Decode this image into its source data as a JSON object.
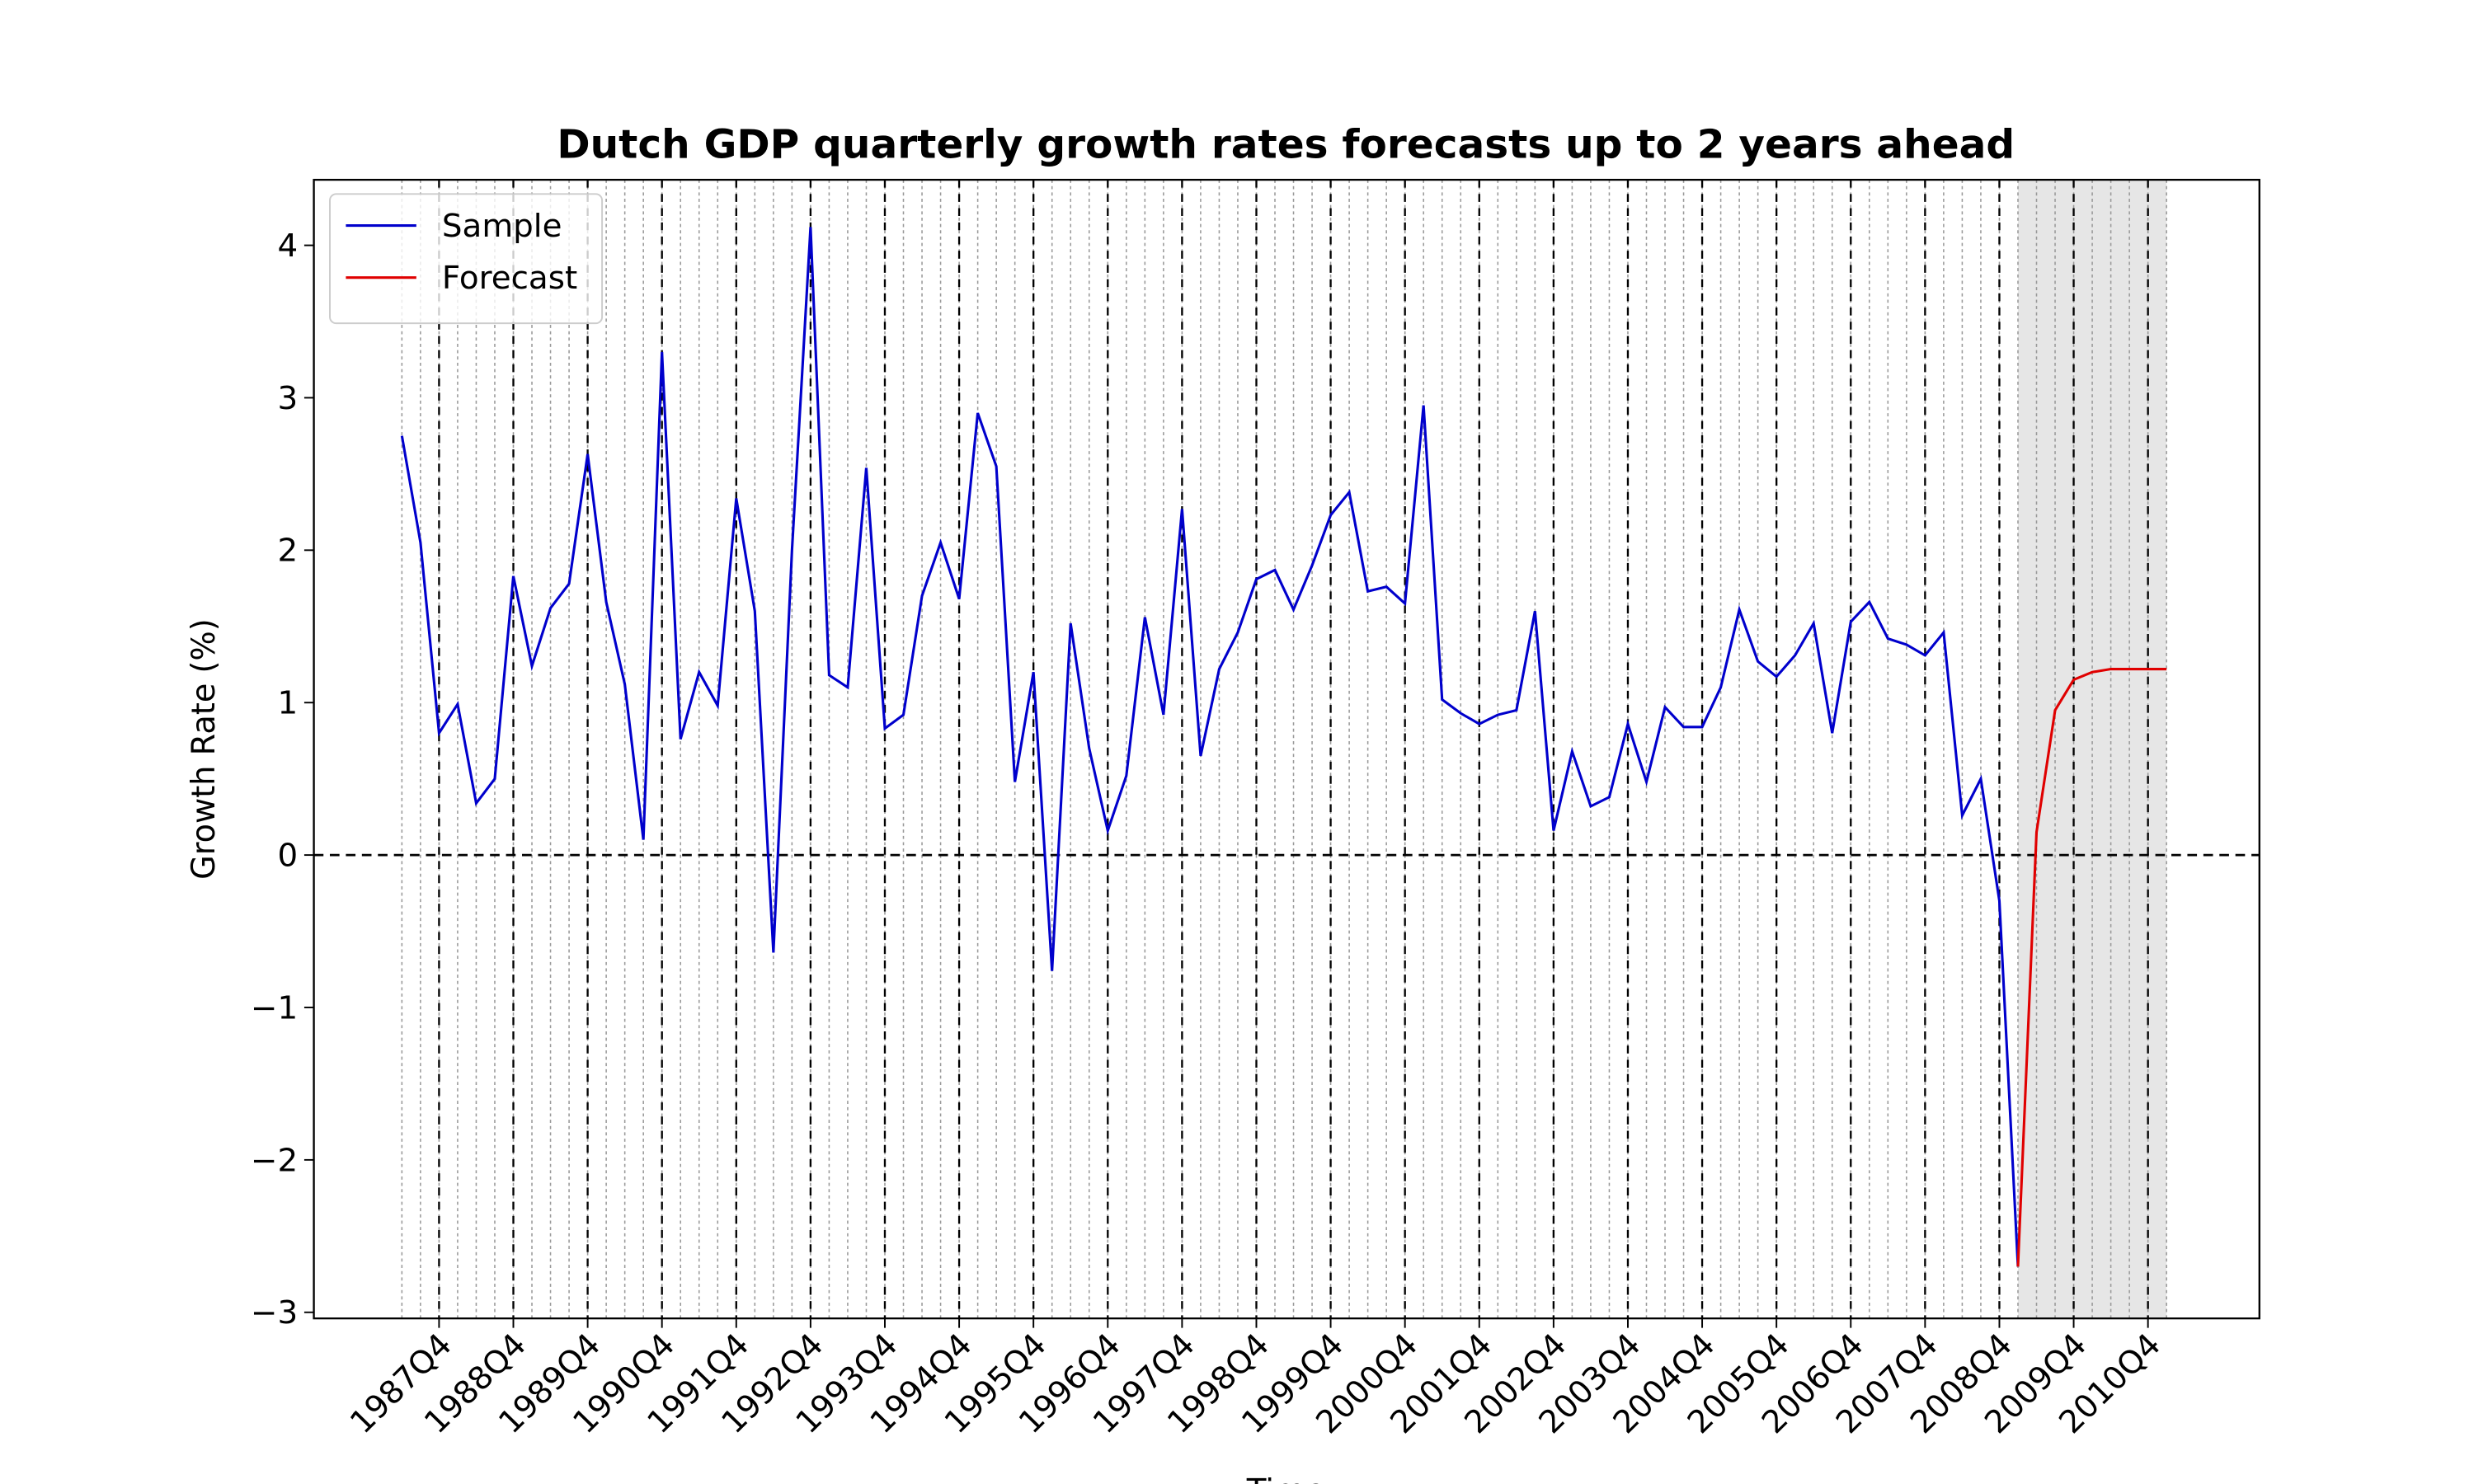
{
  "chart_data": {
    "type": "line",
    "title": "Dutch GDP quarterly growth rates forecasts up to 2 years ahead",
    "ylabel": "Growth Rate (%)",
    "xlabel": "Time",
    "x": [
      "1987Q2",
      "1987Q3",
      "1987Q4",
      "1988Q1",
      "1988Q2",
      "1988Q3",
      "1988Q4",
      "1989Q1",
      "1989Q2",
      "1989Q3",
      "1989Q4",
      "1990Q1",
      "1990Q2",
      "1990Q3",
      "1990Q4",
      "1991Q1",
      "1991Q2",
      "1991Q3",
      "1991Q4",
      "1992Q1",
      "1992Q2",
      "1992Q3",
      "1992Q4",
      "1993Q1",
      "1993Q2",
      "1993Q3",
      "1993Q4",
      "1994Q1",
      "1994Q2",
      "1994Q3",
      "1994Q4",
      "1995Q1",
      "1995Q2",
      "1995Q3",
      "1995Q4",
      "1996Q1",
      "1996Q2",
      "1996Q3",
      "1996Q4",
      "1997Q1",
      "1997Q2",
      "1997Q3",
      "1997Q4",
      "1998Q1",
      "1998Q2",
      "1998Q3",
      "1998Q4",
      "1999Q1",
      "1999Q2",
      "1999Q3",
      "1999Q4",
      "2000Q1",
      "2000Q2",
      "2000Q3",
      "2000Q4",
      "2001Q1",
      "2001Q2",
      "2001Q3",
      "2001Q4",
      "2002Q1",
      "2002Q2",
      "2002Q3",
      "2002Q4",
      "2003Q1",
      "2003Q2",
      "2003Q3",
      "2003Q4",
      "2004Q1",
      "2004Q2",
      "2004Q3",
      "2004Q4",
      "2005Q1",
      "2005Q2",
      "2005Q3",
      "2005Q4",
      "2006Q1",
      "2006Q2",
      "2006Q3",
      "2006Q4",
      "2007Q1",
      "2007Q2",
      "2007Q3",
      "2007Q4",
      "2008Q1",
      "2008Q2",
      "2008Q3",
      "2008Q4",
      "2009Q1",
      "2009Q2",
      "2009Q3",
      "2009Q4",
      "2010Q1",
      "2010Q2",
      "2010Q3",
      "2010Q4",
      "2011Q1"
    ],
    "series": [
      {
        "name": "Sample",
        "color": "#0000cc",
        "values": [
          2.75,
          2.05,
          0.8,
          0.99,
          0.34,
          0.5,
          1.83,
          1.24,
          1.62,
          1.78,
          2.63,
          1.66,
          1.12,
          0.1,
          3.3,
          0.76,
          1.2,
          0.98,
          2.34,
          1.6,
          -0.64,
          2.0,
          4.12,
          1.18,
          1.1,
          2.54,
          0.83,
          0.92,
          1.7,
          2.05,
          1.68,
          2.9,
          2.55,
          0.48,
          1.2,
          -0.76,
          1.52,
          0.7,
          0.16,
          0.52,
          1.56,
          0.92,
          2.27,
          0.65,
          1.22,
          1.46,
          1.81,
          1.87,
          1.61,
          1.9,
          2.23,
          2.38,
          1.73,
          1.76,
          1.65,
          2.95,
          1.02,
          0.93,
          0.86,
          0.92,
          0.95,
          1.6,
          0.16,
          0.68,
          0.32,
          0.38,
          0.86,
          0.48,
          0.97,
          0.84,
          0.84,
          1.1,
          1.61,
          1.27,
          1.17,
          1.31,
          1.52,
          0.8,
          1.53,
          1.66,
          1.42,
          1.38,
          1.31,
          1.46,
          0.26,
          0.5,
          -0.3,
          -2.7,
          null,
          null,
          null,
          null,
          null,
          null,
          null,
          null
        ]
      },
      {
        "name": "Forecast",
        "color": "#e00000",
        "values": [
          null,
          null,
          null,
          null,
          null,
          null,
          null,
          null,
          null,
          null,
          null,
          null,
          null,
          null,
          null,
          null,
          null,
          null,
          null,
          null,
          null,
          null,
          null,
          null,
          null,
          null,
          null,
          null,
          null,
          null,
          null,
          null,
          null,
          null,
          null,
          null,
          null,
          null,
          null,
          null,
          null,
          null,
          null,
          null,
          null,
          null,
          null,
          null,
          null,
          null,
          null,
          null,
          null,
          null,
          null,
          null,
          null,
          null,
          null,
          null,
          null,
          null,
          null,
          null,
          null,
          null,
          null,
          null,
          null,
          null,
          null,
          null,
          null,
          null,
          null,
          null,
          null,
          null,
          null,
          null,
          null,
          null,
          null,
          null,
          null,
          null,
          null,
          -2.7,
          0.15,
          0.95,
          1.15,
          1.2,
          1.22,
          1.22,
          1.22,
          1.22
        ]
      }
    ],
    "xticks": [
      "1987Q4",
      "1988Q4",
      "1989Q4",
      "1990Q4",
      "1991Q4",
      "1992Q4",
      "1993Q4",
      "1994Q4",
      "1995Q4",
      "1996Q4",
      "1997Q4",
      "1998Q4",
      "1999Q4",
      "2000Q4",
      "2001Q4",
      "2002Q4",
      "2003Q4",
      "2004Q4",
      "2005Q4",
      "2006Q4",
      "2007Q4",
      "2008Q4",
      "2009Q4",
      "2010Q4"
    ],
    "ylim": [
      -3.04,
      4.43
    ],
    "yticks": [
      {
        "value": -3,
        "label": "−3"
      },
      {
        "value": -2,
        "label": "−2"
      },
      {
        "value": -1,
        "label": "−1"
      },
      0,
      1,
      2,
      3,
      4
    ],
    "hline": 0,
    "forecast_shade": [
      "2009Q1",
      "2011Q1"
    ],
    "legend": "upper left"
  }
}
